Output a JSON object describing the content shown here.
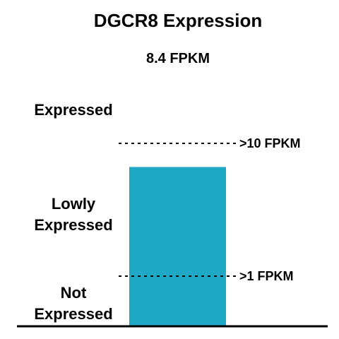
{
  "chart_data": {
    "type": "bar",
    "title": "DGCR8 Expression",
    "subtitle": "8.4 FPKM",
    "values": [
      8.4
    ],
    "unit": "FPKM",
    "bar_color": "#20A9C6",
    "thresholds": [
      {
        "value": 10,
        "label": ">10 FPKM"
      },
      {
        "value": 1,
        "label": ">1 FPKM"
      }
    ],
    "zones": [
      {
        "key": "expressed",
        "lines": [
          "Expressed"
        ]
      },
      {
        "key": "lowly",
        "lines": [
          "Lowly",
          "Expressed"
        ]
      },
      {
        "key": "not",
        "lines": [
          "Not",
          "Expressed"
        ]
      }
    ]
  }
}
